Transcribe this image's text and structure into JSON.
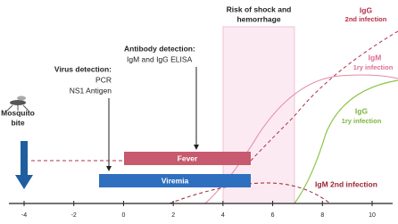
{
  "risk": [
    "Risk of shock and",
    "hemorrhage"
  ],
  "antibody": {
    "title": "Antibody detection:",
    "lines": [
      "IgM and IgG ELISA"
    ]
  },
  "virus": {
    "title": "Virus detection:",
    "lines": [
      "PCR",
      "NS1 Antigen"
    ]
  },
  "mosquito": [
    "Mosquito",
    "bite"
  ],
  "bars": [
    "Fever",
    "Viremia"
  ],
  "curves": {
    "igg2": [
      "IgG",
      "2nd infection"
    ],
    "igm1": [
      "IgM",
      "1ry infection"
    ],
    "igg1": [
      "IgG",
      "1ry infection"
    ],
    "igm2": "IgM 2nd infection"
  },
  "axis": {
    "ticks": [
      -4,
      -2,
      0,
      2,
      4,
      6,
      8,
      10
    ]
  }
}
